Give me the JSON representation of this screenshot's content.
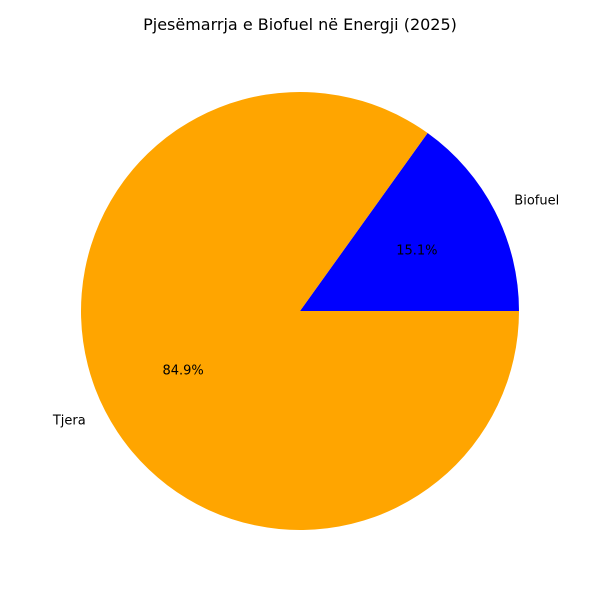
{
  "chart_data": {
    "type": "pie",
    "title": "Pjesëmarrja e Biofuel në Energji (2025)",
    "categories": [
      "Biofuel",
      "Tjera"
    ],
    "values": [
      15.1,
      84.9
    ],
    "percent_labels": [
      "15.1%",
      "84.9%"
    ],
    "colors": [
      "#0000ff",
      "#ffa500"
    ],
    "start_angle_deg": 0,
    "direction": "counterclockwise",
    "legend": "none"
  }
}
